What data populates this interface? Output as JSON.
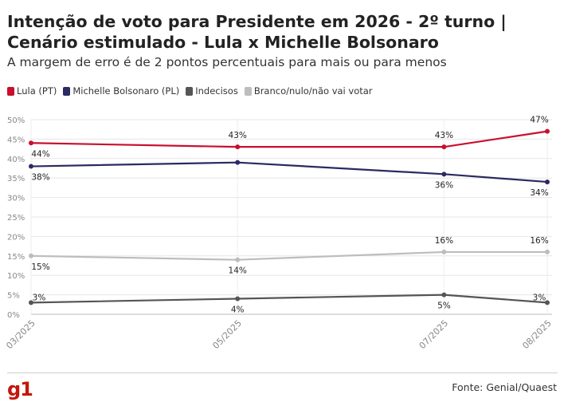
{
  "chart_data": {
    "type": "line",
    "title": "Intenção de voto para Presidente em 2026 - 2º turno | Cenário estimulado - Lula x Michelle Bolsonaro",
    "subtitle": "A margem de erro é de 2 pontos percentuais para mais ou para menos",
    "x": [
      "03/2025",
      "05/2025",
      "07/2025",
      "08/2025"
    ],
    "x_months": [
      3,
      5,
      7,
      8
    ],
    "ylim": [
      0,
      50
    ],
    "yticks": [
      "0%",
      "5%",
      "10%",
      "15%",
      "20%",
      "25%",
      "30%",
      "35%",
      "40%",
      "45%",
      "50%"
    ],
    "legend_position": "top-left",
    "grid": true,
    "series": [
      {
        "name": "Lula (PT)",
        "color": "#c8102e",
        "values": [
          44,
          43,
          43,
          47
        ],
        "labels": [
          "44%",
          "43%",
          "43%",
          "47%"
        ]
      },
      {
        "name": "Michelle Bolsonaro (PL)",
        "color": "#2b2a61",
        "values": [
          38,
          39,
          36,
          34
        ],
        "labels": [
          "38%",
          "",
          "36%",
          "34%"
        ]
      },
      {
        "name": "Indecisos",
        "color": "#555555",
        "values": [
          3,
          4,
          5,
          3
        ],
        "labels": [
          "3%",
          "4%",
          "5%",
          "3%"
        ]
      },
      {
        "name": "Branco/nulo/não vai votar",
        "color": "#bdbdbd",
        "values": [
          15,
          14,
          16,
          16
        ],
        "labels": [
          "15%",
          "14%",
          "16%",
          "16%"
        ]
      }
    ]
  },
  "footer": {
    "logo": "g1",
    "source": "Fonte: Genial/Quaest"
  }
}
